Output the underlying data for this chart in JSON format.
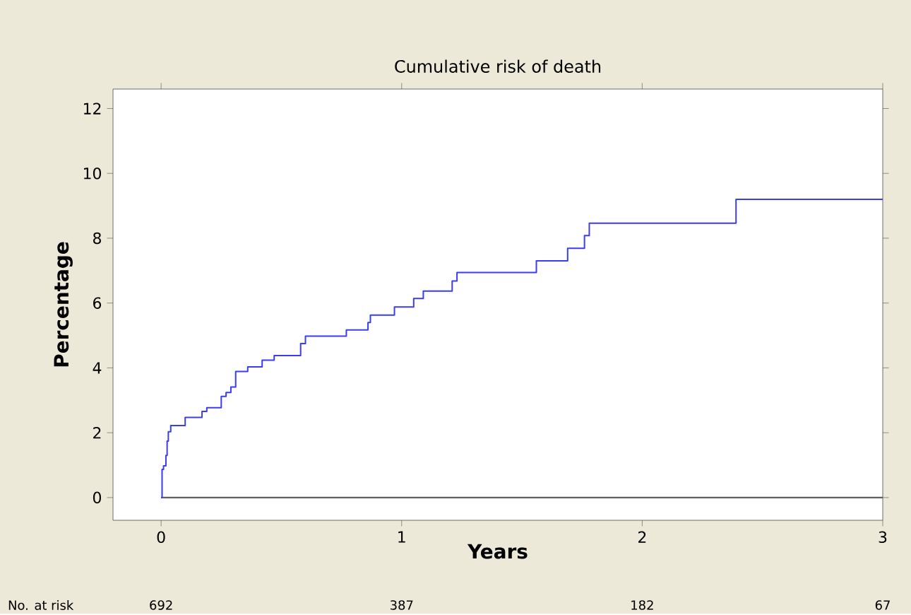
{
  "chart_data": {
    "type": "step",
    "title": "Cumulative risk of death",
    "xlabel": "Years",
    "ylabel": "Percentage",
    "x": [
      0,
      0.004,
      0.01,
      0.02,
      0.025,
      0.03,
      0.04,
      0.1,
      0.17,
      0.19,
      0.25,
      0.27,
      0.29,
      0.31,
      0.36,
      0.42,
      0.47,
      0.58,
      0.6,
      0.77,
      0.86,
      0.87,
      0.97,
      1.05,
      1.09,
      1.21,
      1.23,
      1.56,
      1.69,
      1.76,
      1.78,
      2.39,
      3
    ],
    "series": [
      {
        "color": "#3c3cf0",
        "values": [
          0,
          0.87,
          0.98,
          1.3,
          1.74,
          2.03,
          2.22,
          2.47,
          2.66,
          2.77,
          3.12,
          3.24,
          3.41,
          3.89,
          4.03,
          4.24,
          4.38,
          4.75,
          4.98,
          5.17,
          5.4,
          5.63,
          5.88,
          6.14,
          6.37,
          6.68,
          6.94,
          7.3,
          7.69,
          8.08,
          8.46,
          9.2,
          9.2
        ]
      }
    ],
    "xlim": [
      -0.2,
      3
    ],
    "ylim": [
      -0.7,
      12.6
    ],
    "xticks": [
      0,
      1,
      2,
      3
    ],
    "yticks": [
      0,
      2,
      4,
      6,
      8,
      10,
      12
    ],
    "ref_lines": [
      {
        "axis": "y",
        "value": 0,
        "color": "#606060"
      }
    ],
    "annotations": [
      "No. at risk",
      "692",
      "387",
      "182",
      "67"
    ]
  }
}
